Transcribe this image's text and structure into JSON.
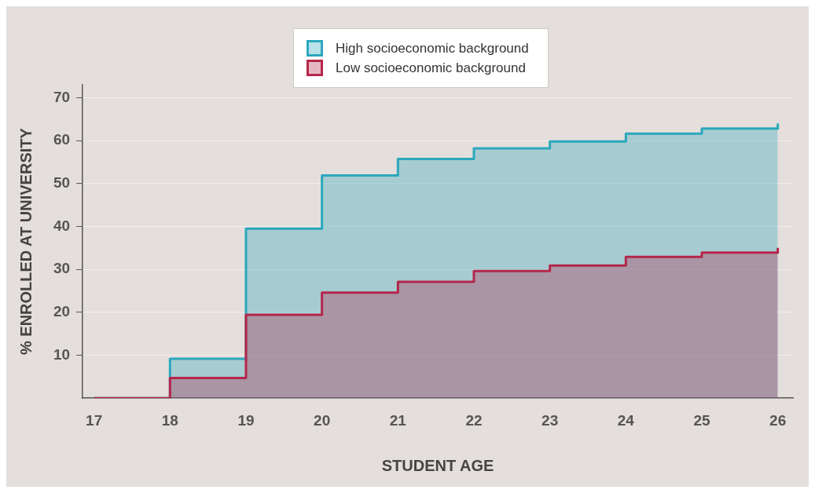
{
  "chart_data": {
    "type": "step",
    "xlabel": "STUDENT AGE",
    "ylabel": "% ENROLLED AT UNIVERSITY",
    "x": [
      17,
      18,
      19,
      20,
      21,
      22,
      23,
      24,
      25,
      26
    ],
    "series": [
      {
        "name": "High socioeconomic background",
        "color": "#2ba7bd",
        "values": [
          0,
          9.2,
          39.5,
          51.9,
          55.7,
          58.2,
          59.8,
          61.6,
          62.8,
          64
        ]
      },
      {
        "name": "Low socioeconomic background",
        "color": "#b5264a",
        "values": [
          0,
          4.7,
          19.4,
          24.6,
          27.1,
          29.6,
          30.9,
          32.9,
          33.9,
          35
        ]
      }
    ],
    "xlim": [
      16.85,
      26.2
    ],
    "xticks": [
      17,
      18,
      19,
      20,
      21,
      22,
      23,
      24,
      25,
      26
    ],
    "ylim": [
      0,
      73
    ],
    "yticks": [
      10,
      20,
      30,
      40,
      50,
      60,
      70
    ],
    "grid": "y",
    "legend": "top"
  }
}
